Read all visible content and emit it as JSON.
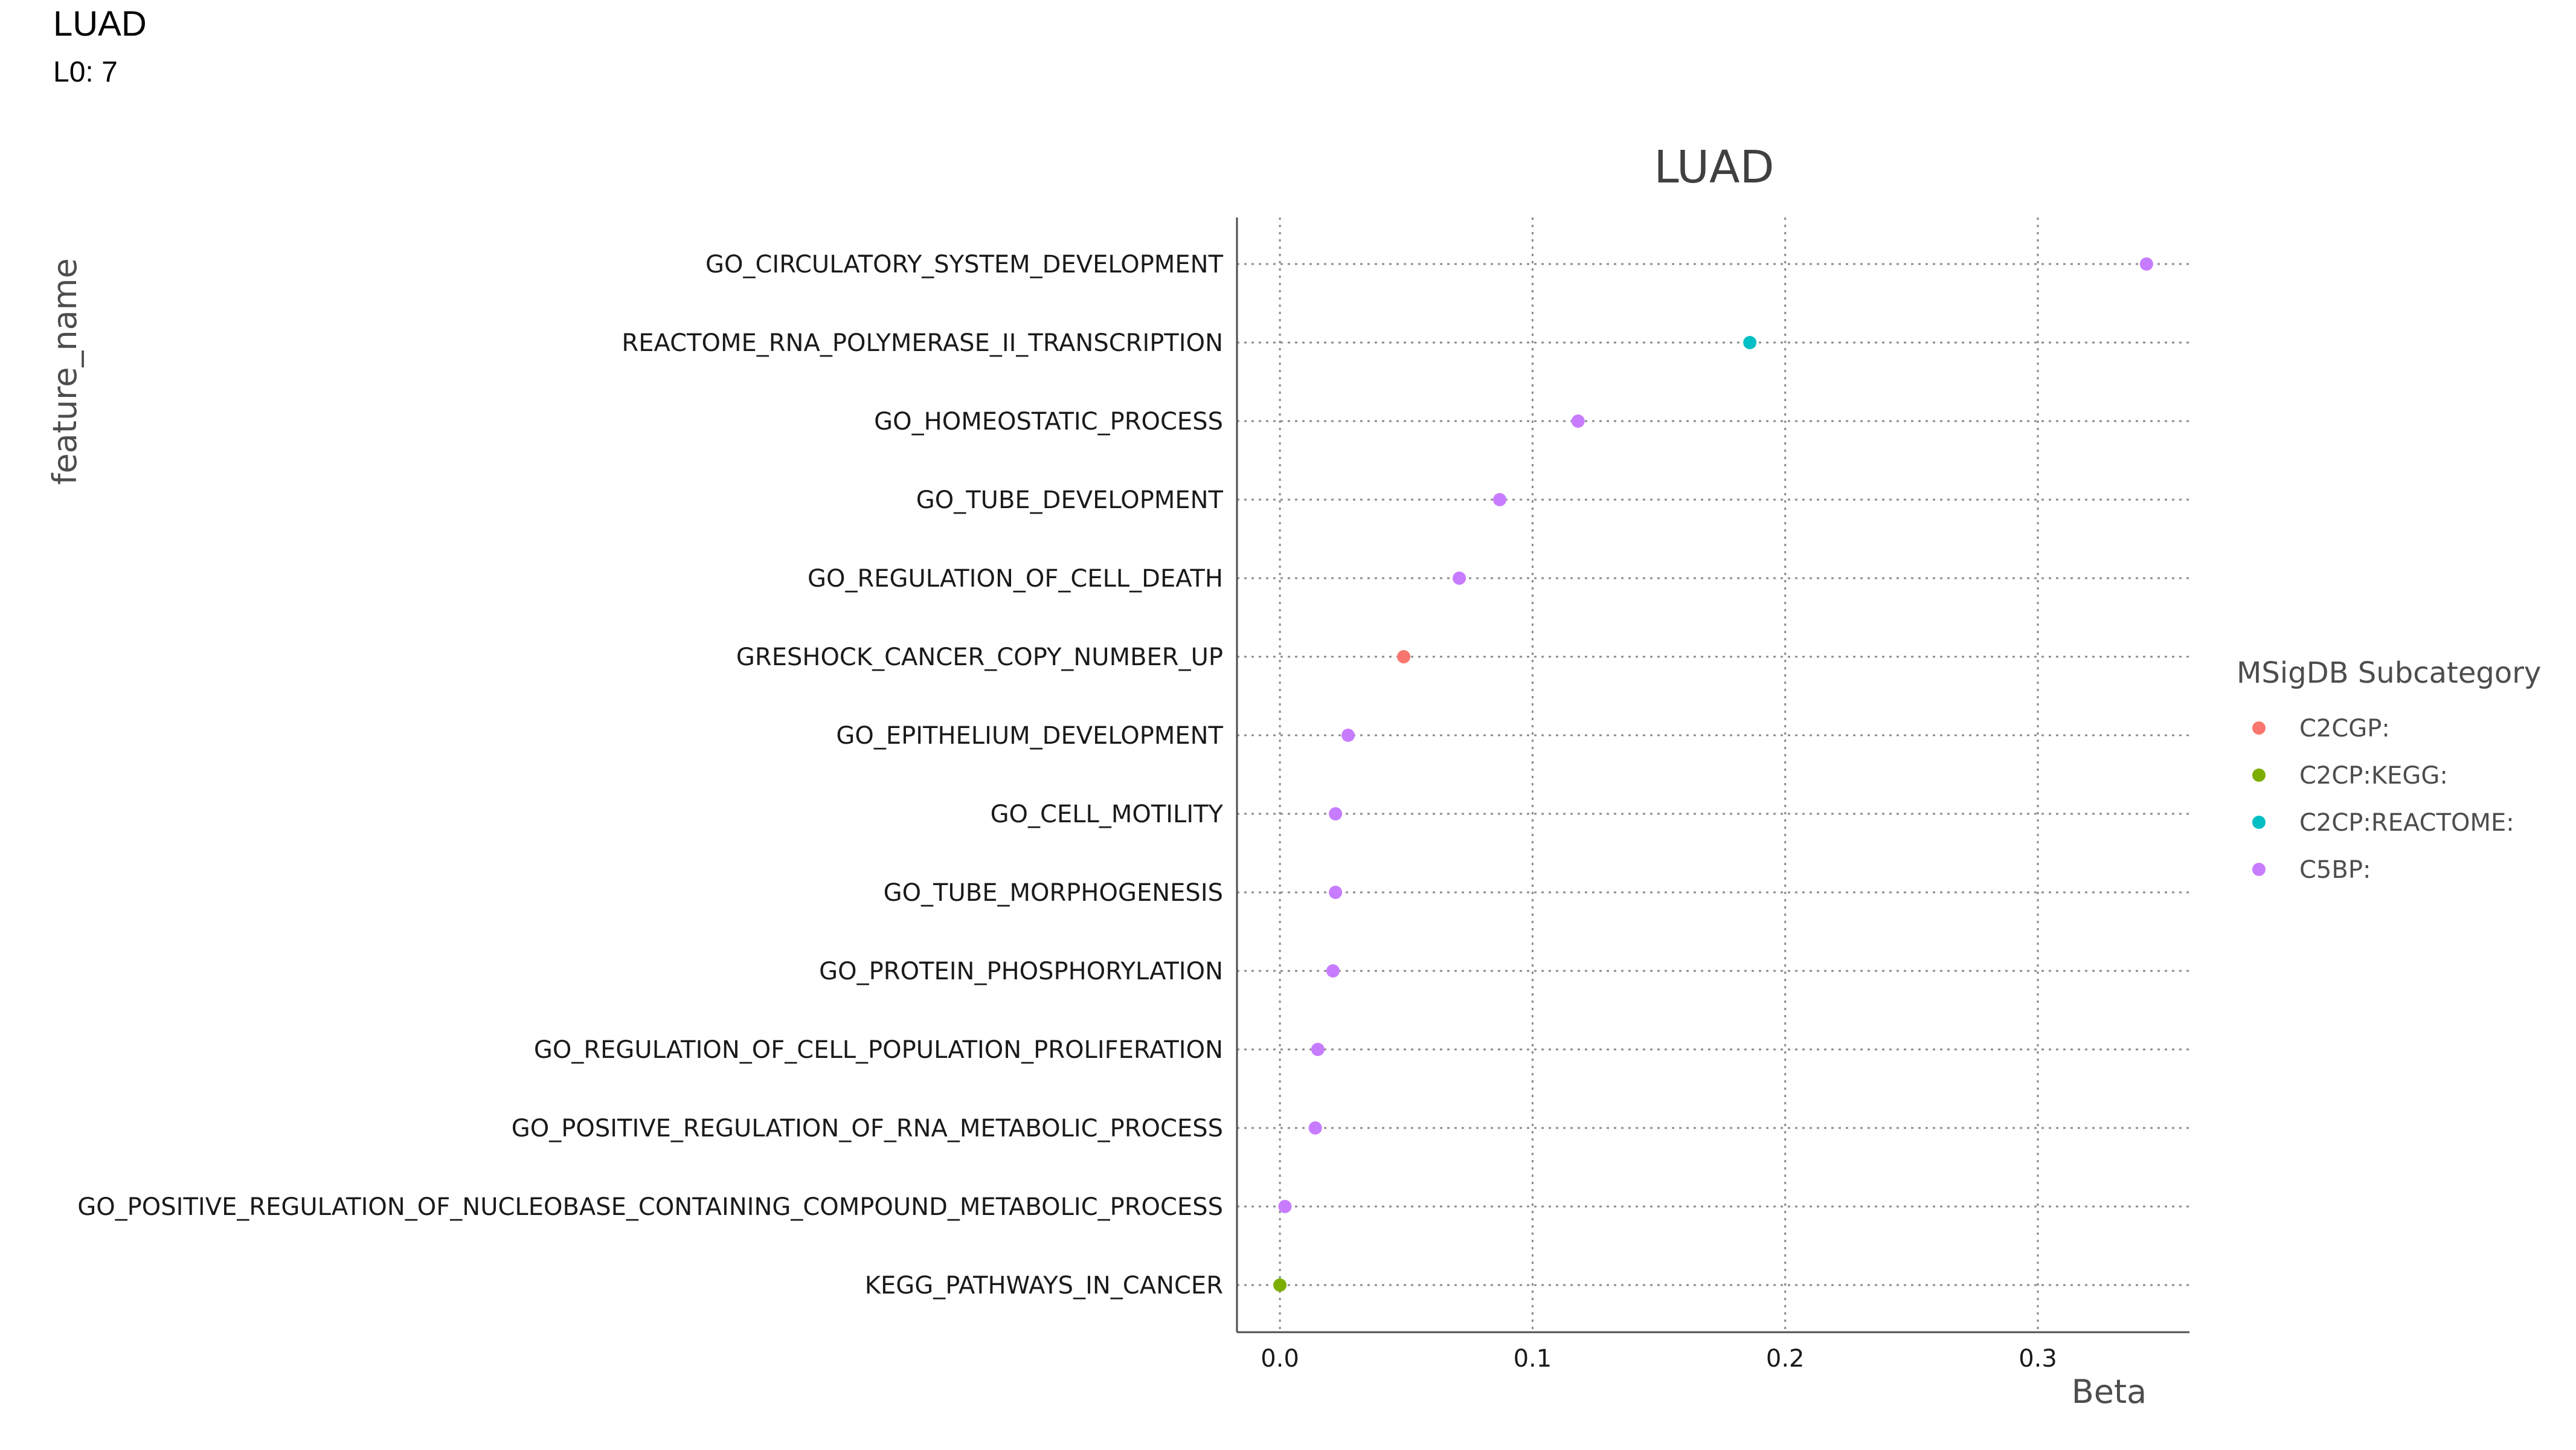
{
  "header": {
    "title": "LUAD",
    "subtitle": "L0: 7"
  },
  "chart_data": {
    "type": "scatter",
    "title": "LUAD",
    "xlabel": "Beta",
    "ylabel": "feature_name",
    "xlim": [
      -0.017,
      0.36
    ],
    "xticks": [
      0.0,
      0.1,
      0.2,
      0.3
    ],
    "xtick_labels": [
      "0.0",
      "0.1",
      "0.2",
      "0.3"
    ],
    "grid": true,
    "legend": {
      "title": "MSigDB Subcategory",
      "placement": "right",
      "entries": [
        {
          "label": "C2CGP:",
          "color": "#F8766D"
        },
        {
          "label": "C2CP:KEGG:",
          "color": "#7CAE00"
        },
        {
          "label": "C2CP:REACTOME:",
          "color": "#00BFC4"
        },
        {
          "label": "C5BP:",
          "color": "#C77CFF"
        }
      ]
    },
    "points": [
      {
        "feature": "GO_CIRCULATORY_SYSTEM_DEVELOPMENT",
        "beta": 0.343,
        "category": "C5BP:"
      },
      {
        "feature": "REACTOME_RNA_POLYMERASE_II_TRANSCRIPTION",
        "beta": 0.186,
        "category": "C2CP:REACTOME:"
      },
      {
        "feature": "GO_HOMEOSTATIC_PROCESS",
        "beta": 0.118,
        "category": "C5BP:"
      },
      {
        "feature": "GO_TUBE_DEVELOPMENT",
        "beta": 0.087,
        "category": "C5BP:"
      },
      {
        "feature": "GO_REGULATION_OF_CELL_DEATH",
        "beta": 0.071,
        "category": "C5BP:"
      },
      {
        "feature": "GRESHOCK_CANCER_COPY_NUMBER_UP",
        "beta": 0.049,
        "category": "C2CGP:"
      },
      {
        "feature": "GO_EPITHELIUM_DEVELOPMENT",
        "beta": 0.027,
        "category": "C5BP:"
      },
      {
        "feature": "GO_CELL_MOTILITY",
        "beta": 0.022,
        "category": "C5BP:"
      },
      {
        "feature": "GO_TUBE_MORPHOGENESIS",
        "beta": 0.022,
        "category": "C5BP:"
      },
      {
        "feature": "GO_PROTEIN_PHOSPHORYLATION",
        "beta": 0.021,
        "category": "C5BP:"
      },
      {
        "feature": "GO_REGULATION_OF_CELL_POPULATION_PROLIFERATION",
        "beta": 0.015,
        "category": "C5BP:"
      },
      {
        "feature": "GO_POSITIVE_REGULATION_OF_RNA_METABOLIC_PROCESS",
        "beta": 0.014,
        "category": "C5BP:"
      },
      {
        "feature": "GO_POSITIVE_REGULATION_OF_NUCLEOBASE_CONTAINING_COMPOUND_METABOLIC_PROCESS",
        "beta": 0.002,
        "category": "C5BP:"
      },
      {
        "feature": "KEGG_PATHWAYS_IN_CANCER",
        "beta": 0.0,
        "category": "C2CP:KEGG:"
      }
    ]
  }
}
